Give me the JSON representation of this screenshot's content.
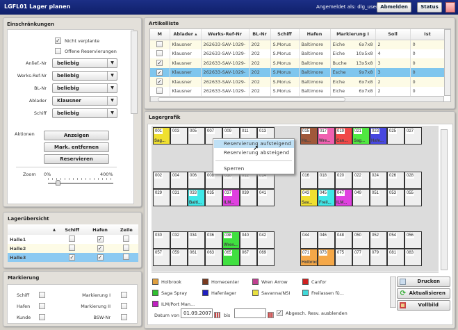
{
  "titlebar": {
    "title": "LGFL01 Lager planen",
    "user": "Angemeldet als: dlg_user1",
    "logout": "Abmelden",
    "status": "Status"
  },
  "einschraenkungen": {
    "title": "Einschränkungen",
    "nicht_verplante": "Nicht verplante",
    "nicht_verplante_checked": true,
    "offene": "Offene Reservierungen",
    "offene_checked": false,
    "filters": [
      {
        "label": "Anlief.-Nr",
        "value": "beliebig"
      },
      {
        "label": "Werks-Ref-Nr",
        "value": "beliebig"
      },
      {
        "label": "BL-Nr",
        "value": "beliebig"
      },
      {
        "label": "Ablader",
        "value": "Klausner"
      },
      {
        "label": "Schiff",
        "value": "beliebig"
      }
    ],
    "aktionen": "Aktionen",
    "anzeigen": "Anzeigen",
    "mark_entfernen": "Mark. entfernen",
    "reservieren": "Reservieren",
    "zoom": "Zoom",
    "zoom_min": "0%",
    "zoom_max": "400%",
    "zoom_value_pct": 15
  },
  "lageruebersicht": {
    "title": "Lagerübersicht",
    "sort": "▲",
    "cols": [
      "Schiff",
      "Hafen",
      "Zeile"
    ],
    "rows": [
      {
        "name": "Halle1",
        "schiff": false,
        "hafen": true,
        "zeile": false
      },
      {
        "name": "Halle2",
        "schiff": false,
        "hafen": true,
        "zeile": false
      },
      {
        "name": "Halle3",
        "schiff": true,
        "hafen": true,
        "zeile": false
      }
    ]
  },
  "markierung": {
    "title": "Markierung",
    "items": [
      "Schiff",
      "Hafen",
      "Kunde",
      "Markierung I",
      "Markierung II",
      "BSW-Nr"
    ]
  },
  "artikelliste": {
    "title": "Artikelliste",
    "cols": [
      "M",
      "Ablader ▴",
      "Werks-Ref-Nr",
      "BL-Nr",
      "Schiff",
      "Hafen",
      "Markierung I",
      "Soll",
      "Ist"
    ],
    "rows": [
      {
        "m": false,
        "ablader": "Klausner",
        "werks": "262633-SAV-1029-",
        "bl": "202",
        "schiff": "S.Morus",
        "hafen": "Baltimore",
        "mark": "Eiche",
        "dim": "6x7x8",
        "soll": "2",
        "ist": "0"
      },
      {
        "m": false,
        "ablader": "Klausner",
        "werks": "262633-SAV-1029-",
        "bl": "202",
        "schiff": "S.Morus",
        "hafen": "Baltimore",
        "mark": "Eiche",
        "dim": "10x5x8",
        "soll": "4",
        "ist": "0"
      },
      {
        "m": true,
        "ablader": "Klausner",
        "werks": "262633-SAV-1029-",
        "bl": "202",
        "schiff": "S.Morus",
        "hafen": "Baltimore",
        "mark": "Buche",
        "dim": "13x5x8",
        "soll": "3",
        "ist": "0"
      },
      {
        "m": true,
        "ablader": "Klausner",
        "werks": "262633-SAV-1029-",
        "bl": "202",
        "schiff": "S.Morus",
        "hafen": "Baltimore",
        "mark": "Esche",
        "dim": "9x7x8",
        "soll": "3",
        "ist": "0",
        "selected": true
      },
      {
        "m": true,
        "ablader": "Klausner",
        "werks": "262633-SAV-1029-",
        "bl": "202",
        "schiff": "S.Morus",
        "hafen": "Baltimore",
        "mark": "Eiche",
        "dim": "6x7x8",
        "soll": "2",
        "ist": "0"
      },
      {
        "m": false,
        "ablader": "Klausner",
        "werks": "262633-SAV-1029-",
        "bl": "202",
        "schiff": "S.Morus",
        "hafen": "Baltimore",
        "mark": "Eiche",
        "dim": "6x7x8",
        "soll": "2",
        "ist": "0"
      }
    ]
  },
  "lagergrafik": {
    "title": "Lagergrafik",
    "rows": [
      {
        "left": [
          "001",
          "003",
          "005",
          "007",
          "009",
          "011",
          "013"
        ],
        "right": [
          "015",
          "017",
          "019",
          "021",
          "023",
          "025",
          "027"
        ]
      },
      {
        "left": [
          "002",
          "004",
          "006",
          "008",
          "010",
          "012",
          "014"
        ],
        "right": [
          "016",
          "018",
          "020",
          "022",
          "024",
          "026",
          "028"
        ]
      },
      {
        "left": [
          "029",
          "031",
          "033",
          "035",
          "037",
          "039",
          "041"
        ],
        "right": [
          "043",
          "045",
          "047",
          "049",
          "051",
          "053",
          "055"
        ]
      },
      {
        "left": [
          "030",
          "032",
          "034",
          "036",
          "038",
          "040",
          "042"
        ],
        "right": [
          "044",
          "046",
          "048",
          "050",
          "052",
          "054",
          "056"
        ]
      },
      {
        "left": [
          "057",
          "059",
          "061",
          "063",
          "065",
          "067",
          "069"
        ],
        "right": [
          "071",
          "073",
          "075",
          "077",
          "079",
          "081",
          "083"
        ]
      }
    ],
    "occupied": {
      "001": {
        "color": "#f0e030",
        "label": "Sag..."
      },
      "033": {
        "color": "#40e8e8",
        "label": "Balti..."
      },
      "037": {
        "color": "#e040e0",
        "label": "ILM..."
      },
      "015": {
        "color": "#a0583a",
        "label": "Ho..."
      },
      "017": {
        "color": "#f060b0",
        "label": "Wre..."
      },
      "019": {
        "color": "#f04848",
        "label": "Can..."
      },
      "021": {
        "color": "#50e840",
        "label": "Sag..."
      },
      "023": {
        "color": "#4848e0",
        "label": "Hafe..."
      },
      "043": {
        "color": "#f0e030",
        "label": "Sav..."
      },
      "045": {
        "color": "#40e8e8",
        "label": "Freil..."
      },
      "047": {
        "color": "#e040e0",
        "label": "ILM..."
      },
      "038": {
        "color": "#40e040",
        "label": "Wren..."
      },
      "065": {
        "color": "#40e040",
        "label": ""
      },
      "071": {
        "color": "#f5a848",
        "label": "Holbrook"
      },
      "073": {
        "color": "#f5a848",
        "label": ""
      }
    },
    "context_menu": [
      "Reservierung aufsteigend",
      "Reservierung absteigend",
      "Sperren"
    ],
    "legend": [
      {
        "label": "Holbrook",
        "color": "#e0a040"
      },
      {
        "label": "Homecenter",
        "color": "#7a3a20"
      },
      {
        "label": "Wren Arrow",
        "color": "#c04090"
      },
      {
        "label": "Canfor",
        "color": "#d02020"
      },
      {
        "label": "Saga Spray",
        "color": "#30c030"
      },
      {
        "label": "Hafenlager",
        "color": "#2020c0"
      },
      {
        "label": "Savanna/NSI",
        "color": "#e8e040"
      },
      {
        "label": "Freilassen fü...",
        "color": "#40d8d8"
      },
      {
        "label": "ILM/Port Man...",
        "color": "#c020c0"
      }
    ],
    "datum_von": "Datum von",
    "datum_von_value": "01.09.2007",
    "bis": "bis",
    "bis_value": "",
    "abgesch": "Abgesch. Resv. ausblenden",
    "abgesch_checked": true,
    "drucken": "Drucken",
    "aktualisieren": "Aktualisieren",
    "vollbild": "Vollbild"
  }
}
